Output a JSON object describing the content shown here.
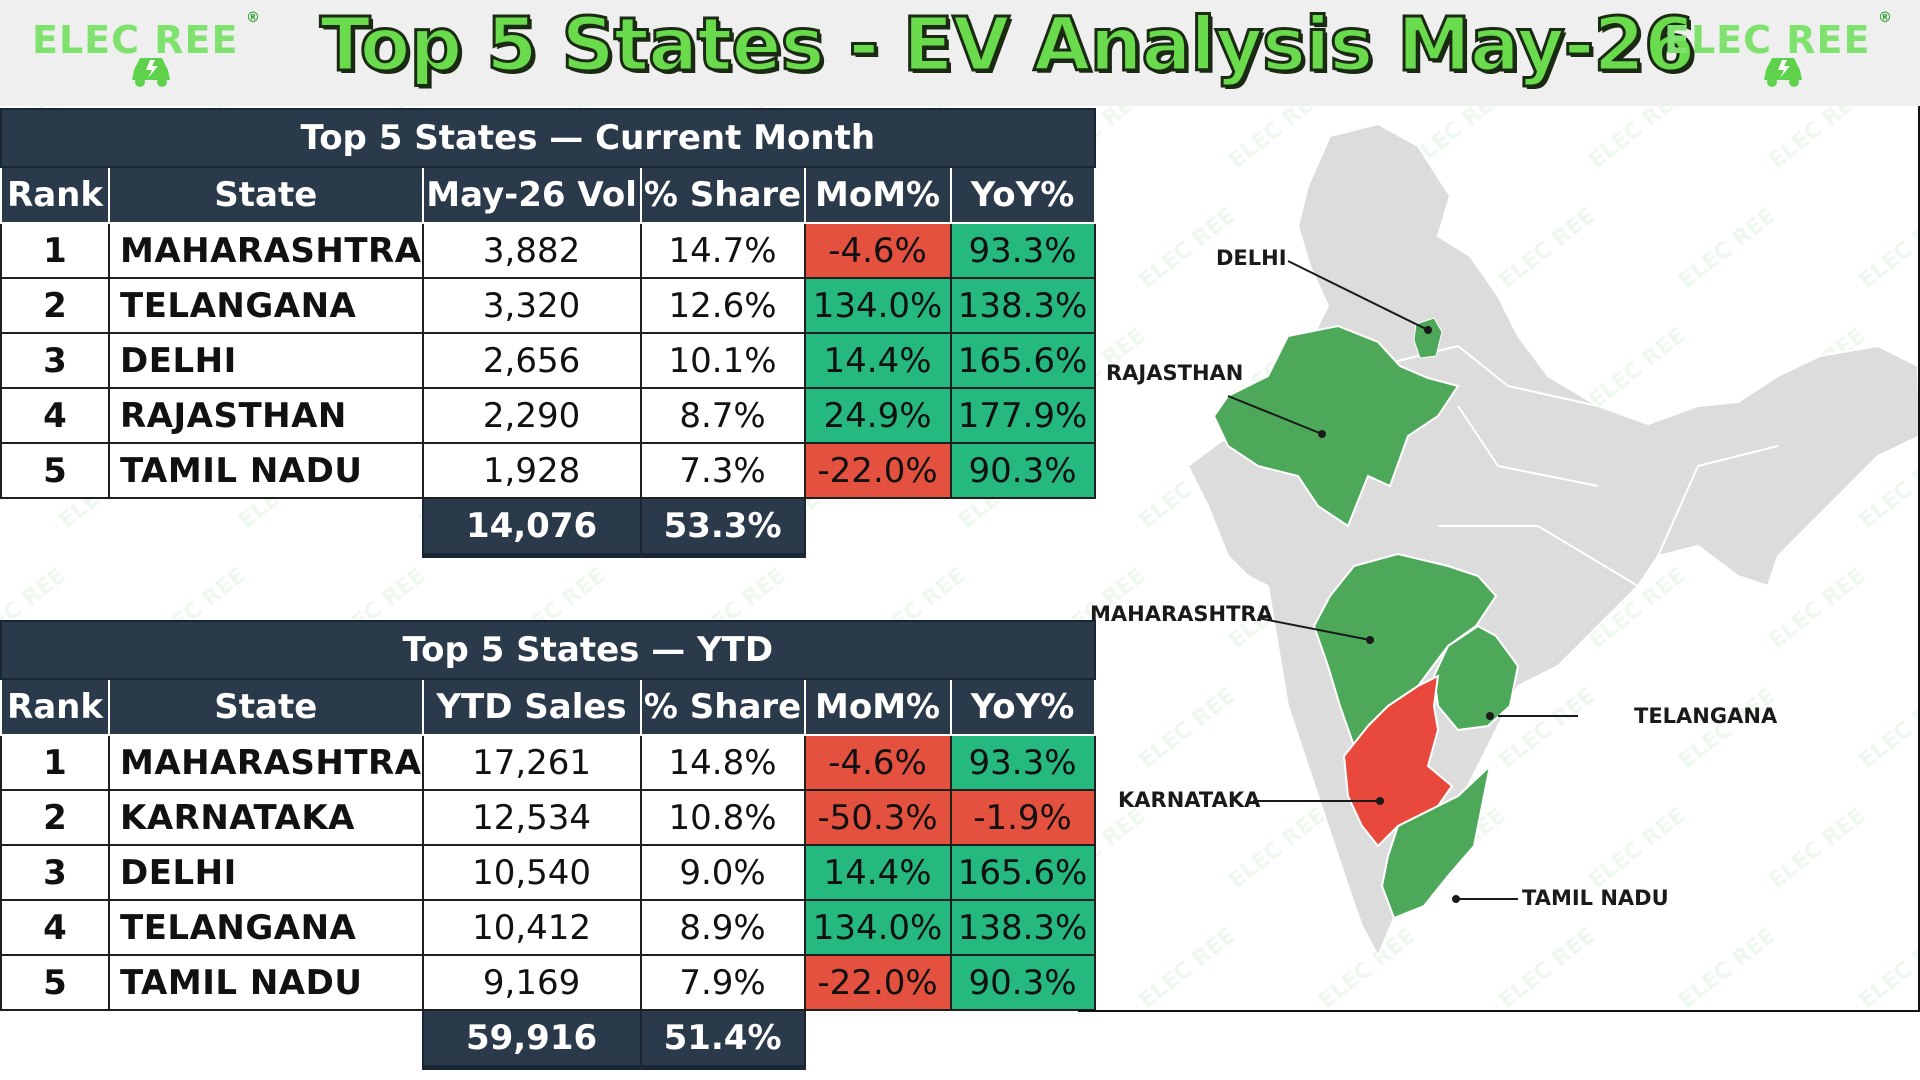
{
  "title": "Top 5 States - EV Analysis May-26",
  "brand": {
    "logo_text": "ELEC REE",
    "registered": "®",
    "accent": "#69db4d"
  },
  "colors": {
    "header_bg": "#2b3a4a",
    "positive": "#26b97f",
    "negative": "#e5513f",
    "map_highlight": "#4ea85a",
    "map_negative": "#e9493c",
    "map_base": "#dcdcdc"
  },
  "current_month": {
    "title": "Top 5 States — Current Month",
    "columns": [
      "Rank",
      "State",
      "May-26 Vol",
      "% Share",
      "MoM%",
      "YoY%"
    ],
    "rows": [
      {
        "rank": "1",
        "state": "MAHARASHTRA",
        "vol": "3,882",
        "share": "14.7%",
        "mom": "-4.6%",
        "yoy": "93.3%"
      },
      {
        "rank": "2",
        "state": "TELANGANA",
        "vol": "3,320",
        "share": "12.6%",
        "mom": "134.0%",
        "yoy": "138.3%"
      },
      {
        "rank": "3",
        "state": "DELHI",
        "vol": "2,656",
        "share": "10.1%",
        "mom": "14.4%",
        "yoy": "165.6%"
      },
      {
        "rank": "4",
        "state": "RAJASTHAN",
        "vol": "2,290",
        "share": "8.7%",
        "mom": "24.9%",
        "yoy": "177.9%"
      },
      {
        "rank": "5",
        "state": "TAMIL NADU",
        "vol": "1,928",
        "share": "7.3%",
        "mom": "-22.0%",
        "yoy": "90.3%"
      }
    ],
    "total_vol": "14,076",
    "total_share": "53.3%"
  },
  "ytd": {
    "title": "Top 5 States — YTD",
    "columns": [
      "Rank",
      "State",
      "YTD Sales",
      "% Share",
      "MoM%",
      "YoY%"
    ],
    "rows": [
      {
        "rank": "1",
        "state": "MAHARASHTRA",
        "vol": "17,261",
        "share": "14.8%",
        "mom": "-4.6%",
        "yoy": "93.3%"
      },
      {
        "rank": "2",
        "state": "KARNATAKA",
        "vol": "12,534",
        "share": "10.8%",
        "mom": "-50.3%",
        "yoy": "-1.9%"
      },
      {
        "rank": "3",
        "state": "DELHI",
        "vol": "10,540",
        "share": "9.0%",
        "mom": "14.4%",
        "yoy": "165.6%"
      },
      {
        "rank": "4",
        "state": "TELANGANA",
        "vol": "10,412",
        "share": "8.9%",
        "mom": "134.0%",
        "yoy": "138.3%"
      },
      {
        "rank": "5",
        "state": "TAMIL NADU",
        "vol": "9,169",
        "share": "7.9%",
        "mom": "-22.0%",
        "yoy": "90.3%"
      }
    ],
    "total_vol": "59,916",
    "total_share": "51.4%"
  },
  "map": {
    "labels": {
      "delhi": "DELHI",
      "rajasthan": "RAJASTHAN",
      "maharashtra": "MAHARASHTRA",
      "telangana": "TELANGANA",
      "karnataka": "KARNATAKA",
      "tamil_nadu": "TAMIL NADU"
    }
  }
}
